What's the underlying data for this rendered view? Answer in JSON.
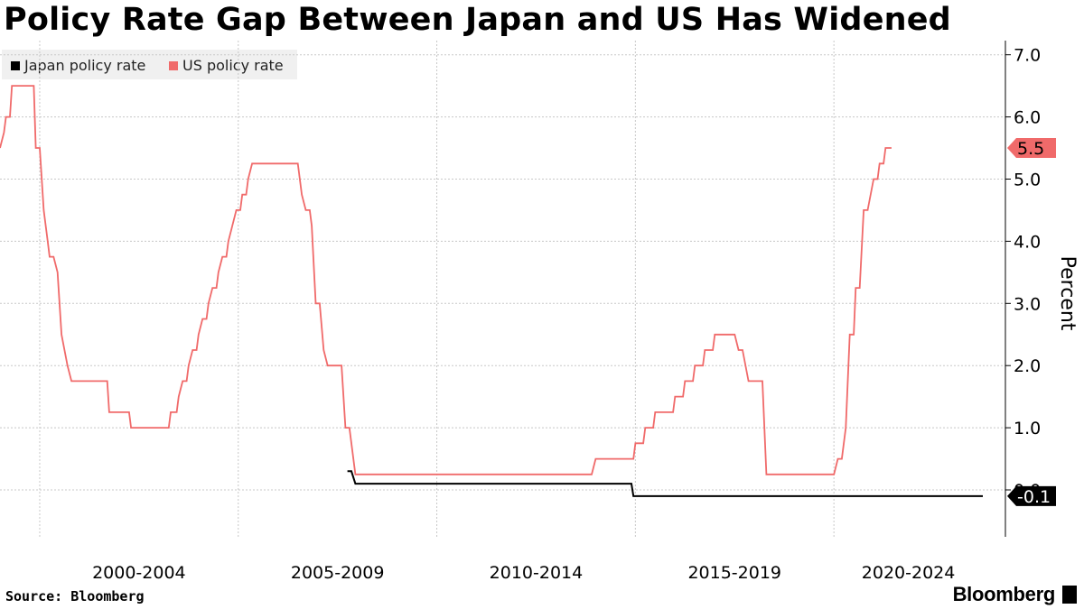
{
  "chart_data": {
    "type": "line",
    "title": "Policy Rate Gap Between Japan and US Has Widened",
    "ylabel": "Percent",
    "ylim": [
      -0.75,
      7.3
    ],
    "xlim": [
      1999.0,
      2023.75
    ],
    "yticks": [
      "7.0",
      "6.0",
      "5.0",
      "4.0",
      "3.0",
      "2.0",
      "1.0",
      "0.0"
    ],
    "categories": [
      "2000-2004",
      "2005-2009",
      "2010-2014",
      "2015-2019",
      "2020-2024"
    ],
    "category_ticks": [
      2000,
      2005,
      2010,
      2015,
      2020,
      2025
    ],
    "legend_position": "top-left",
    "grid": true,
    "series": [
      {
        "name": "Japan policy rate",
        "color": "#000000",
        "end_label": "-0.1",
        "points": [
          [
            2007.75,
            0.3
          ],
          [
            2007.85,
            0.3
          ],
          [
            2007.95,
            0.1
          ],
          [
            2014.9,
            0.1
          ],
          [
            2014.95,
            -0.1
          ],
          [
            2023.75,
            -0.1
          ]
        ]
      },
      {
        "name": "US policy rate",
        "color": "#f06a6a",
        "end_label": "5.5",
        "points": [
          [
            1999.0,
            5.5
          ],
          [
            1999.1,
            5.75
          ],
          [
            1999.15,
            6.0
          ],
          [
            1999.25,
            6.0
          ],
          [
            1999.3,
            6.5
          ],
          [
            1999.85,
            6.5
          ],
          [
            1999.9,
            5.5
          ],
          [
            2000.0,
            5.5
          ],
          [
            2000.1,
            4.5
          ],
          [
            2000.2,
            4.0
          ],
          [
            2000.25,
            3.75
          ],
          [
            2000.35,
            3.75
          ],
          [
            2000.45,
            3.5
          ],
          [
            2000.55,
            2.5
          ],
          [
            2000.7,
            2.0
          ],
          [
            2000.8,
            1.75
          ],
          [
            2001.7,
            1.75
          ],
          [
            2001.75,
            1.25
          ],
          [
            2002.25,
            1.25
          ],
          [
            2002.3,
            1.0
          ],
          [
            2003.25,
            1.0
          ],
          [
            2003.3,
            1.25
          ],
          [
            2003.45,
            1.25
          ],
          [
            2003.5,
            1.5
          ],
          [
            2003.6,
            1.75
          ],
          [
            2003.7,
            1.75
          ],
          [
            2003.75,
            2.0
          ],
          [
            2003.85,
            2.25
          ],
          [
            2003.95,
            2.25
          ],
          [
            2004.0,
            2.5
          ],
          [
            2004.1,
            2.75
          ],
          [
            2004.2,
            2.75
          ],
          [
            2004.25,
            3.0
          ],
          [
            2004.35,
            3.25
          ],
          [
            2004.45,
            3.25
          ],
          [
            2004.5,
            3.5
          ],
          [
            2004.6,
            3.75
          ],
          [
            2004.7,
            3.75
          ],
          [
            2004.75,
            4.0
          ],
          [
            2004.85,
            4.25
          ],
          [
            2004.95,
            4.5
          ],
          [
            2005.05,
            4.5
          ],
          [
            2005.1,
            4.75
          ],
          [
            2005.2,
            4.75
          ],
          [
            2005.25,
            5.0
          ],
          [
            2005.35,
            5.25
          ],
          [
            2006.5,
            5.25
          ],
          [
            2006.6,
            4.75
          ],
          [
            2006.7,
            4.5
          ],
          [
            2006.8,
            4.5
          ],
          [
            2006.85,
            4.25
          ],
          [
            2006.95,
            3.0
          ],
          [
            2007.05,
            3.0
          ],
          [
            2007.15,
            2.25
          ],
          [
            2007.25,
            2.0
          ],
          [
            2007.6,
            2.0
          ],
          [
            2007.7,
            1.0
          ],
          [
            2007.8,
            1.0
          ],
          [
            2007.95,
            0.25
          ],
          [
            2013.9,
            0.25
          ],
          [
            2014.0,
            0.5
          ],
          [
            2014.95,
            0.5
          ],
          [
            2015.0,
            0.75
          ],
          [
            2015.2,
            0.75
          ],
          [
            2015.25,
            1.0
          ],
          [
            2015.45,
            1.0
          ],
          [
            2015.5,
            1.25
          ],
          [
            2015.95,
            1.25
          ],
          [
            2016.0,
            1.5
          ],
          [
            2016.2,
            1.5
          ],
          [
            2016.25,
            1.75
          ],
          [
            2016.45,
            1.75
          ],
          [
            2016.5,
            2.0
          ],
          [
            2016.7,
            2.0
          ],
          [
            2016.75,
            2.25
          ],
          [
            2016.95,
            2.25
          ],
          [
            2017.0,
            2.5
          ],
          [
            2017.5,
            2.5
          ],
          [
            2017.6,
            2.25
          ],
          [
            2017.7,
            2.25
          ],
          [
            2017.85,
            1.75
          ],
          [
            2018.2,
            1.75
          ],
          [
            2018.3,
            0.25
          ],
          [
            2020.0,
            0.25
          ],
          [
            2020.1,
            0.5
          ],
          [
            2020.2,
            0.5
          ],
          [
            2020.3,
            1.0
          ],
          [
            2020.4,
            2.5
          ],
          [
            2020.5,
            2.5
          ],
          [
            2020.55,
            3.25
          ],
          [
            2020.65,
            3.25
          ],
          [
            2020.75,
            4.5
          ],
          [
            2020.85,
            4.5
          ],
          [
            2021.0,
            5.0
          ],
          [
            2021.1,
            5.0
          ],
          [
            2021.15,
            5.25
          ],
          [
            2021.25,
            5.25
          ],
          [
            2021.3,
            5.5
          ],
          [
            2021.45,
            5.5
          ]
        ]
      }
    ],
    "source": "Source: Bloomberg",
    "brand": "Bloomberg"
  }
}
